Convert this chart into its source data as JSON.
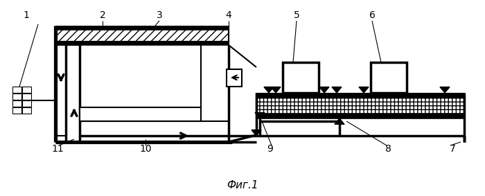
{
  "title": "Фиг.1",
  "bg_color": "#ffffff",
  "figsize": [
    7.0,
    2.83
  ],
  "dpi": 100,
  "lw": 1.5,
  "lw_thick": 2.5
}
